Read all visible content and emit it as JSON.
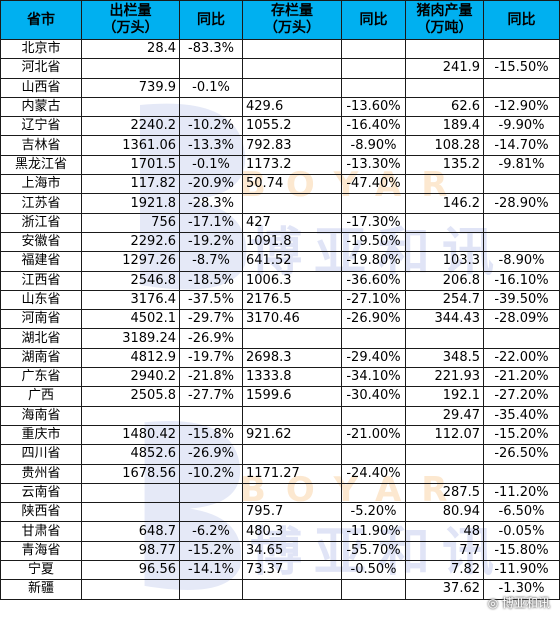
{
  "headers": [
    {
      "line1": "省市",
      "line2": ""
    },
    {
      "line1": "出栏量",
      "line2": "（万头）"
    },
    {
      "line1": "同比",
      "line2": ""
    },
    {
      "line1": "存栏量",
      "line2": "（万头）"
    },
    {
      "line1": "同比",
      "line2": ""
    },
    {
      "line1": "猪肉产量",
      "line2": "（万吨）"
    },
    {
      "line1": "同比",
      "line2": ""
    }
  ],
  "rows": [
    [
      "北京市",
      "28.4",
      "-83.3%",
      "",
      "",
      "",
      ""
    ],
    [
      "河北省",
      "",
      "",
      "",
      "",
      "241.9",
      "-15.50%"
    ],
    [
      "山西省",
      "739.9",
      "-0.1%",
      "",
      "",
      "",
      ""
    ],
    [
      "内蒙古",
      "",
      "",
      "429.6",
      "-13.60%",
      "62.6",
      "-12.90%"
    ],
    [
      "辽宁省",
      "2240.2",
      "-10.2%",
      "1055.2",
      "-16.40%",
      "189.4",
      "-9.90%"
    ],
    [
      "吉林省",
      "1361.06",
      "-13.3%",
      "792.83",
      "-8.90%",
      "108.28",
      "-14.70%"
    ],
    [
      "黑龙江省",
      "1701.5",
      "-0.1%",
      "1173.2",
      "-13.30%",
      "135.2",
      "-9.81%"
    ],
    [
      "上海市",
      "117.82",
      "-20.9%",
      "50.74",
      "-47.40%",
      "",
      ""
    ],
    [
      "江苏省",
      "1921.8",
      "-28.3%",
      "",
      "",
      "146.2",
      "-28.90%"
    ],
    [
      "浙江省",
      "756",
      "-17.1%",
      "427",
      "-17.30%",
      "",
      ""
    ],
    [
      "安徽省",
      "2292.6",
      "-19.2%",
      "1091.8",
      "-19.50%",
      "",
      ""
    ],
    [
      "福建省",
      "1297.26",
      "-8.7%",
      "641.52",
      "-19.80%",
      "103.3",
      "-8.90%"
    ],
    [
      "江西省",
      "2546.8",
      "-18.5%",
      "1006.3",
      "-36.60%",
      "206.8",
      "-16.10%"
    ],
    [
      "山东省",
      "3176.4",
      "-37.5%",
      "2176.5",
      "-27.10%",
      "254.7",
      "-39.50%"
    ],
    [
      "河南省",
      "4502.1",
      "-29.7%",
      "3170.46",
      "-26.90%",
      "344.43",
      "-28.09%"
    ],
    [
      "湖北省",
      "3189.24",
      "-26.9%",
      "",
      "",
      "",
      ""
    ],
    [
      "湖南省",
      "4812.9",
      "-19.7%",
      "2698.3",
      "-29.40%",
      "348.5",
      "-22.00%"
    ],
    [
      "广东省",
      "2940.2",
      "-21.8%",
      "1333.8",
      "-34.10%",
      "221.93",
      "-21.20%"
    ],
    [
      "广西",
      "2505.8",
      "-27.7%",
      "1599.6",
      "-30.40%",
      "192.1",
      "-27.20%"
    ],
    [
      "海南省",
      "",
      "",
      "",
      "",
      "29.47",
      "-35.40%"
    ],
    [
      "重庆市",
      "1480.42",
      "-15.8%",
      "921.62",
      "-21.00%",
      "112.07",
      "-15.20%"
    ],
    [
      "四川省",
      "4852.6",
      "-26.9%",
      "",
      "",
      "",
      "-26.50%"
    ],
    [
      "贵州省",
      "1678.56",
      "-10.2%",
      "1171.27",
      "-24.40%",
      "",
      ""
    ],
    [
      "云南省",
      "",
      "",
      "",
      "",
      "287.5",
      "-11.20%"
    ],
    [
      "陕西省",
      "",
      "",
      "795.7",
      "-5.20%",
      "80.94",
      "-6.50%"
    ],
    [
      "甘肃省",
      "648.7",
      "-6.2%",
      "480.3",
      "-11.90%",
      "48",
      "-0.05%"
    ],
    [
      "青海省",
      "98.77",
      "-15.2%",
      "34.65",
      "-55.70%",
      "7.7",
      "-15.80%"
    ],
    [
      "宁夏",
      "96.56",
      "-14.1%",
      "73.37",
      "-0.50%",
      "7.82",
      "-11.90%"
    ],
    [
      "新疆",
      "",
      "",
      "",
      "",
      "37.62",
      "-1.30%"
    ]
  ],
  "watermark": {
    "latin": "BOYAR",
    "cjk": "博亚和讯"
  },
  "credit": "博亚和讯",
  "colors": {
    "header_bg": "#00b0f0",
    "grid": "#1a1a1a"
  }
}
